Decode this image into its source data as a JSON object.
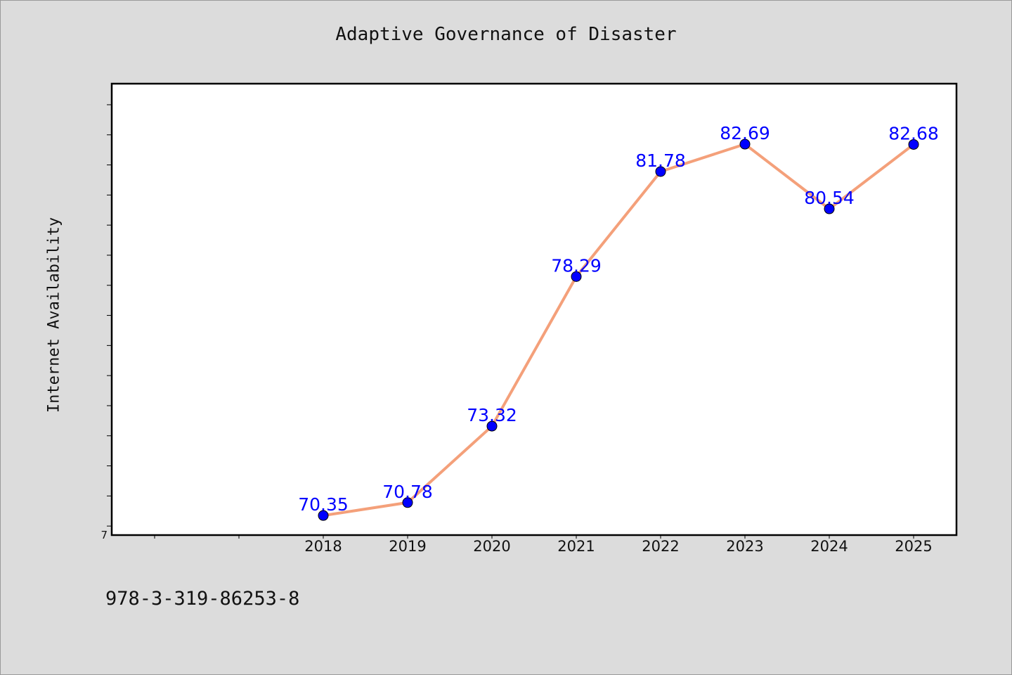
{
  "chart_data": {
    "type": "line",
    "title": "Adaptive Governance of Disaster",
    "xlabel": "",
    "ylabel": "Internet Availability",
    "categories": [
      "2018",
      "2019",
      "2020",
      "2021",
      "2022",
      "2023",
      "2024",
      "2025"
    ],
    "series": [
      {
        "values": [
          70.35,
          70.78,
          73.32,
          78.29,
          81.78,
          82.69,
          80.54,
          82.68
        ]
      }
    ],
    "data_labels": [
      "70.35",
      "70.78",
      "73.32",
      "78.29",
      "81.78",
      "82.69",
      "80.54",
      "82.68"
    ],
    "ytick_labels": [
      "7"
    ],
    "ylim": [
      69.7,
      84.7
    ],
    "grid": false,
    "line_color": "#f4a07a",
    "marker_color": "#0000ff",
    "label_color": "#0000ff"
  },
  "footer": {
    "code": "978-3-319-86253-8"
  }
}
